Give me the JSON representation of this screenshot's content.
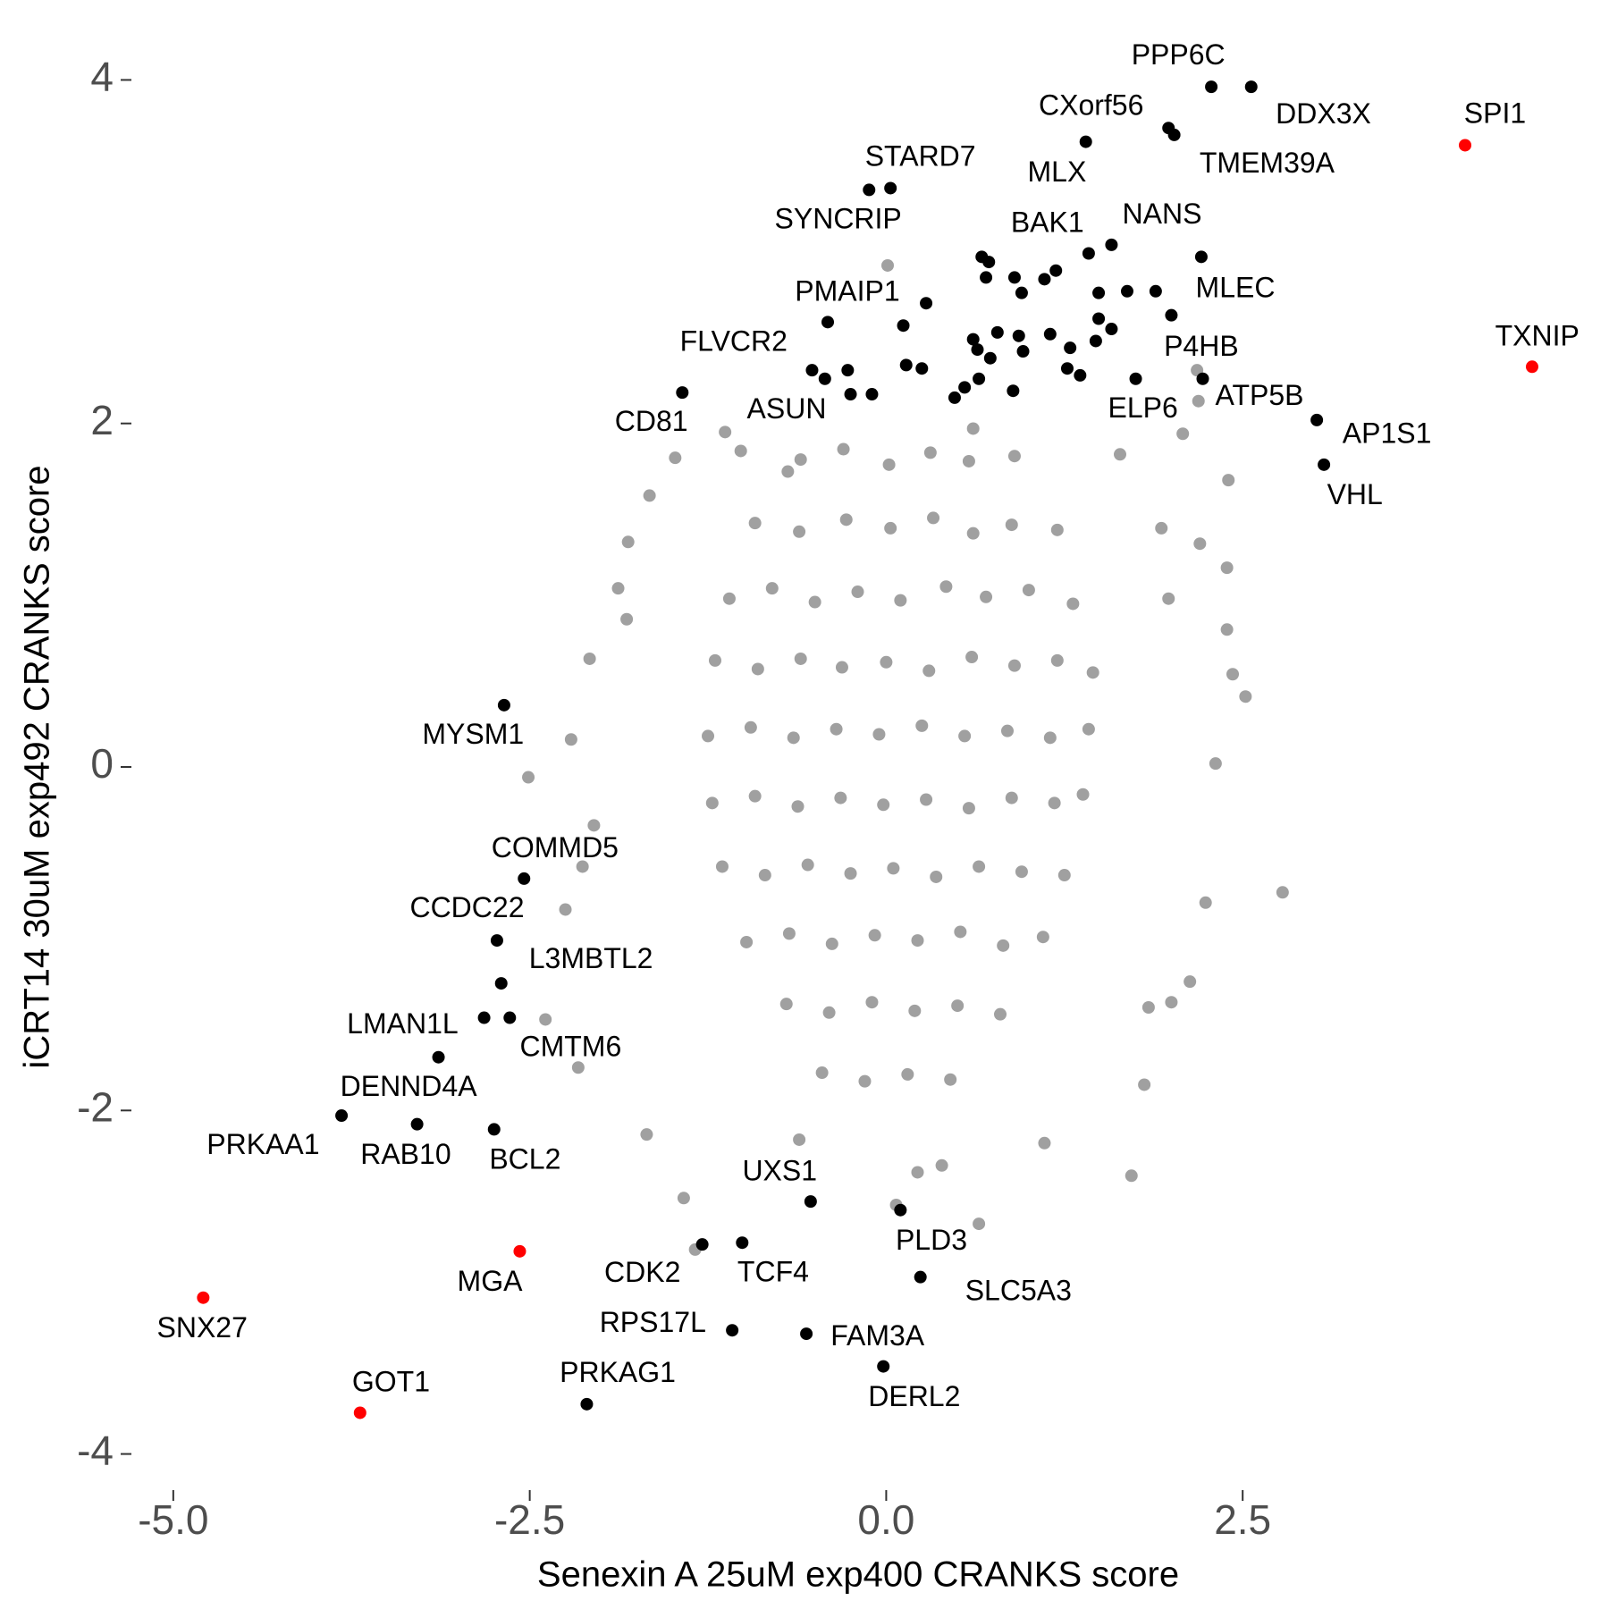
{
  "chart_data": {
    "type": "scatter",
    "x_label": "Senexin A 25uM exp400 CRANKS score",
    "y_label": "iCRT14 30uM exp492 CRANKS score",
    "xlim": [
      -5.3,
      4.9
    ],
    "ylim": [
      -4.2,
      4.2
    ],
    "xticks": [
      {
        "value": -5,
        "label": "-5.0"
      },
      {
        "value": -2.5,
        "label": "-2.5"
      },
      {
        "value": 0,
        "label": "0.0"
      },
      {
        "value": 2.5,
        "label": "2.5"
      }
    ],
    "yticks": [
      -4,
      -2,
      0,
      2,
      4
    ],
    "series": [
      {
        "color": "#a0a0a0",
        "x": [
          -0.6,
          -0.3,
          0.02,
          0.31,
          0.58,
          0.9,
          -0.92,
          -0.61,
          -0.28,
          0.03,
          0.33,
          0.61,
          0.88,
          1.2,
          -1.1,
          -0.8,
          -0.5,
          -0.2,
          0.1,
          0.42,
          0.7,
          1.0,
          1.31,
          -1.2,
          -0.9,
          -0.6,
          -0.31,
          0.0,
          0.3,
          0.6,
          0.9,
          1.2,
          1.45,
          -1.25,
          -0.95,
          -0.65,
          -0.35,
          -0.05,
          0.25,
          0.55,
          0.85,
          1.15,
          1.42,
          -1.22,
          -0.92,
          -0.62,
          -0.32,
          -0.02,
          0.28,
          0.58,
          0.88,
          1.18,
          1.38,
          -1.15,
          -0.85,
          -0.55,
          -0.25,
          0.05,
          0.35,
          0.65,
          0.95,
          1.25,
          -0.98,
          -0.68,
          -0.38,
          -0.08,
          0.22,
          0.52,
          0.82,
          1.1,
          -0.7,
          -0.4,
          -0.1,
          0.2,
          0.5,
          0.8,
          -0.45,
          -0.15,
          0.15,
          0.45,
          0.01,
          2.18,
          2.19,
          2.4,
          -1.13,
          -1.48,
          -1.66,
          -1.81,
          -1.88,
          -1.82,
          -2.08,
          -2.21,
          -2.51,
          -2.05,
          -2.25,
          -2.13,
          -2.39,
          -2.16,
          -1.68,
          -1.42,
          -1.34,
          -0.61,
          0.07,
          0.65,
          0.22,
          0.39,
          1.11,
          1.72,
          1.81,
          1.84,
          2.0,
          2.13,
          2.24,
          2.78,
          2.31,
          2.52,
          2.43,
          2.39,
          1.98,
          2.2,
          2.39,
          2.08,
          1.64,
          1.93,
          -1.02,
          -0.69,
          0.61
        ],
        "y": [
          1.79,
          1.85,
          1.76,
          1.83,
          1.78,
          1.81,
          1.42,
          1.37,
          1.44,
          1.39,
          1.45,
          1.36,
          1.41,
          1.38,
          0.98,
          1.04,
          0.96,
          1.02,
          0.97,
          1.05,
          0.99,
          1.03,
          0.95,
          0.62,
          0.57,
          0.63,
          0.58,
          0.61,
          0.56,
          0.64,
          0.59,
          0.62,
          0.55,
          0.18,
          0.23,
          0.17,
          0.22,
          0.19,
          0.24,
          0.18,
          0.21,
          0.17,
          0.22,
          -0.21,
          -0.17,
          -0.23,
          -0.18,
          -0.22,
          -0.19,
          -0.24,
          -0.18,
          -0.21,
          -0.16,
          -0.58,
          -0.63,
          -0.57,
          -0.62,
          -0.59,
          -0.64,
          -0.58,
          -0.61,
          -0.63,
          -1.02,
          -0.97,
          -1.03,
          -0.98,
          -1.01,
          -0.96,
          -1.04,
          -0.99,
          -1.38,
          -1.43,
          -1.37,
          -1.42,
          -1.39,
          -1.44,
          -1.78,
          -1.83,
          -1.79,
          -1.82,
          2.92,
          2.31,
          2.13,
          1.67,
          1.95,
          1.8,
          1.58,
          1.31,
          1.04,
          0.86,
          0.63,
          0.16,
          -0.06,
          -0.34,
          -0.83,
          -0.58,
          -1.47,
          -1.75,
          -2.14,
          -2.51,
          -2.81,
          -2.17,
          -2.55,
          -2.66,
          -2.36,
          -2.32,
          -2.19,
          -2.38,
          -1.85,
          -1.4,
          -1.37,
          -1.25,
          -0.79,
          -0.73,
          0.02,
          0.41,
          0.54,
          0.8,
          0.98,
          1.3,
          1.16,
          1.94,
          1.82,
          1.39,
          1.84,
          1.72,
          1.97
        ]
      },
      {
        "color": "#000000",
        "x": [
          0.67,
          0.72,
          0.7,
          0.9,
          0.95,
          1.11,
          1.19,
          1.49,
          1.69,
          1.89,
          1.49,
          1.58,
          1.47,
          1.15,
          0.93,
          0.78,
          0.61,
          0.64,
          0.73,
          0.96,
          1.29,
          1.27,
          1.36,
          0.28,
          0.12,
          0.14,
          0.25,
          0.65,
          0.55,
          0.48,
          0.89,
          -0.43,
          -0.27,
          -0.1
        ],
        "y": [
          2.97,
          2.94,
          2.85,
          2.85,
          2.76,
          2.84,
          2.89,
          2.76,
          2.77,
          2.77,
          2.61,
          2.55,
          2.48,
          2.52,
          2.51,
          2.53,
          2.49,
          2.43,
          2.38,
          2.42,
          2.44,
          2.32,
          2.28,
          2.7,
          2.57,
          2.34,
          2.32,
          2.26,
          2.21,
          2.15,
          2.19,
          2.26,
          2.31,
          2.17
        ]
      },
      {
        "color": "#000000",
        "labels": [
          "PPP6C",
          "DDX3X",
          "CXorf56",
          "TMEM39A",
          "MLX",
          "STARD7",
          "SYNCRIP",
          "BAK1",
          "NANS",
          "MLEC",
          "PMAIP1",
          "FLVCR2",
          "CD81",
          "ASUN",
          "P4HB",
          "ATP5B",
          "ELP6",
          "AP1S1",
          "VHL",
          "MYSM1",
          "COMMD5",
          "CCDC22",
          "L3MBTL2",
          "LMAN1L",
          "CMTM6",
          "DENND4A",
          "PRKAA1",
          "RAB10",
          "BCL2",
          "UXS1",
          "PLD3",
          "CDK2",
          "TCF4",
          "SLC5A3",
          "RPS17L",
          "FAM3A",
          "DERL2",
          "PRKAG1"
        ],
        "x": [
          2.28,
          2.56,
          1.98,
          2.02,
          1.4,
          0.03,
          -0.12,
          1.42,
          1.58,
          2.21,
          -0.41,
          -0.52,
          -1.43,
          -0.25,
          2.0,
          2.22,
          1.75,
          3.02,
          3.07,
          -2.68,
          -2.54,
          -2.73,
          -2.7,
          -2.82,
          -2.64,
          -3.14,
          -3.82,
          -3.29,
          -2.75,
          -0.53,
          0.1,
          -1.29,
          -1.01,
          0.24,
          -1.08,
          -0.56,
          -0.02,
          -2.1
        ],
        "y": [
          3.96,
          3.96,
          3.72,
          3.68,
          3.64,
          3.37,
          3.36,
          2.99,
          3.04,
          2.97,
          2.59,
          2.31,
          2.18,
          2.17,
          2.63,
          2.26,
          2.26,
          2.02,
          1.76,
          0.36,
          -0.65,
          -1.01,
          -1.26,
          -1.46,
          -1.46,
          -1.69,
          -2.03,
          -2.08,
          -2.11,
          -2.53,
          -2.58,
          -2.78,
          -2.77,
          -2.97,
          -3.28,
          -3.3,
          -3.49,
          -3.71
        ]
      },
      {
        "color": "#ff0000",
        "labels": [
          "SPI1",
          "TXNIP",
          "MGA",
          "SNX27",
          "GOT1"
        ],
        "x": [
          4.06,
          4.53,
          -2.57,
          -4.79,
          -3.69
        ],
        "y": [
          3.62,
          2.33,
          -2.82,
          -3.09,
          -3.76
        ]
      }
    ]
  }
}
